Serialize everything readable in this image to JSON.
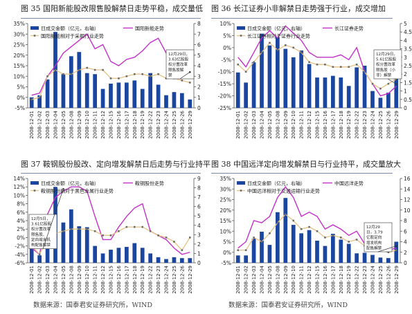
{
  "colors": {
    "bar": "#1b46a0",
    "stock": "#c230c8",
    "relative": "#e7c48b",
    "relative_marker": "#6a6a6a",
    "axis": "#555555",
    "text": "#222222"
  },
  "source_text": "数据来源：国泰君安证券研究所，WIND",
  "charts": [
    {
      "title": "图 35 国阳新能股改限售股解禁日走势平稳，成交量低",
      "legend": {
        "bar": "日成交金额（亿元，右轴）",
        "stock": "国阳新能走势",
        "relative": "国阳新能相对于采掘行业走势"
      },
      "annotation": [
        "12月29日，",
        "3.63亿股股",
        "权分置改革",
        "限售股解",
        "禁"
      ],
      "left_ticks": [
        "-5%",
        "0%",
        "5%",
        "10%",
        "15%",
        "20%",
        "25%",
        "30%",
        "35%"
      ],
      "right_ticks": [
        "0",
        "1",
        "2",
        "3",
        "4",
        "5",
        "6",
        "7",
        "8"
      ],
      "x_labels": [
        "2008-12-01",
        "2008-12-02",
        "2008-12-03",
        "2008-12-04",
        "2008-12-05",
        "2008-12-08",
        "2008-12-09",
        "2008-12-10",
        "2008-12-11",
        "2008-12-12",
        "2008-12-15",
        "2008-12-16",
        "2008-12-17",
        "2008-12-18",
        "2008-12-19",
        "2008-12-22",
        "2008-12-23",
        "2008-12-24",
        "2008-12-25",
        "2008-12-26",
        "2008-12-29"
      ]
    },
    {
      "title": "图 36 长江证券小非解禁日走势强于行业，成交增加",
      "legend": {
        "bar": "日成交金额（亿元，右轴）",
        "stock": "长江证券走势",
        "relative": "长江证券相对于证券行业走势"
      },
      "annotation": [
        "12月29日，",
        "5.61亿股股",
        "权分置改革",
        "限售股（小",
        "非）解禁"
      ],
      "left_ticks": [
        "-25%",
        "-20%",
        "-15%",
        "-10%",
        "-5%",
        "0%",
        "5%",
        "10%"
      ],
      "right_ticks": [
        "0",
        "0.5",
        "1",
        "1.5",
        "2",
        "2.5",
        "3",
        "3.5",
        "4",
        "4.5",
        "5"
      ],
      "x_labels": [
        "2008-12-01",
        "2008-12-02",
        "2008-12-03",
        "2008-12-04",
        "2008-12-05",
        "2008-12-08",
        "2008-12-09",
        "2008-12-10",
        "2008-12-11",
        "2008-12-12",
        "2008-12-15",
        "2008-12-16",
        "2008-12-17",
        "2008-12-18",
        "2008-12-19",
        "2008-12-22",
        "2008-12-23",
        "2008-12-24",
        "2008-12-25",
        "2008-12-26",
        "2008-12-29"
      ]
    },
    {
      "title": "图 37 鞍钢股份股改、定向增发解禁日后走势与行业持平",
      "legend": {
        "bar": "日成交金额（亿元，右轴）",
        "stock": "鞍钢股份走势",
        "relative": "鞍钢股份相对于黑色金属行业走势"
      },
      "annotation": [
        "12月5日，",
        "3.61亿股股",
        "权分置改革",
        "限售股、",
        "定向增发机",
        "构配售解禁"
      ],
      "left_ticks": [
        "-6%",
        "-4%",
        "-2%",
        "0%",
        "2%",
        "4%",
        "6%",
        "8%",
        "10%",
        "12%",
        "14%"
      ],
      "right_ticks": [
        "0",
        "1",
        "2",
        "3",
        "4",
        "5",
        "6",
        "7",
        "8",
        "9"
      ],
      "x_labels": [
        "2008-12-01",
        "2008-12-02",
        "2008-12-03",
        "2008-12-04",
        "2008-12-05",
        "2008-12-08",
        "2008-12-09",
        "2008-12-10",
        "2008-12-11",
        "2008-12-12",
        "2008-12-15",
        "2008-12-16",
        "2008-12-17",
        "2008-12-18",
        "2008-12-19",
        "2008-12-22",
        "2008-12-23",
        "2008-12-24",
        "2008-12-25",
        "2008-12-26",
        "2008-12-29"
      ]
    },
    {
      "title": "图 38 中国远洋定向增发解禁日与行业持平，成交量放大",
      "legend": {
        "bar": "日成交金额（亿元，右轴）",
        "stock": "中国远洋走势",
        "relative": "中国远洋相对于交通运输行业走势"
      },
      "annotation": [
        "12月29",
        "日，3.79",
        "亿股定向",
        "增发机构",
        "配售解禁"
      ],
      "left_ticks": [
        "-5%",
        "0%",
        "5%",
        "10%",
        "15%",
        "20%",
        "25%",
        "30%",
        "35%"
      ],
      "right_ticks": [
        "0",
        "2",
        "4",
        "6",
        "8",
        "10",
        "12",
        "14",
        "16"
      ],
      "x_labels": [
        "2008-12-01",
        "2008-12-02",
        "2008-12-03",
        "2008-12-04",
        "2008-12-05",
        "2008-12-08",
        "2008-12-09",
        "2008-12-10",
        "2008-12-11",
        "2008-12-12",
        "2008-12-15",
        "2008-12-16",
        "2008-12-17",
        "2008-12-18",
        "2008-12-19",
        "2008-12-22",
        "2008-12-23",
        "2008-12-24",
        "2008-12-25",
        "2008-12-26",
        "2008-12-29"
      ]
    }
  ],
  "chart_data": [
    {
      "type": "bar",
      "categories": [
        "2008-12-01",
        "2008-12-02",
        "2008-12-03",
        "2008-12-04",
        "2008-12-05",
        "2008-12-08",
        "2008-12-09",
        "2008-12-10",
        "2008-12-11",
        "2008-12-12",
        "2008-12-15",
        "2008-12-16",
        "2008-12-17",
        "2008-12-18",
        "2008-12-19",
        "2008-12-22",
        "2008-12-23",
        "2008-12-24",
        "2008-12-25",
        "2008-12-26",
        "2008-12-29"
      ],
      "ylim_left": [
        -5,
        35
      ],
      "ylim_right": [
        0,
        8
      ],
      "series": [
        {
          "name": "日成交金额（亿元，右轴）",
          "type": "bar",
          "axis": "right",
          "values": [
            1.0,
            1.2,
            2.7,
            7.2,
            3.2,
            4.9,
            5.3,
            3.3,
            3.2,
            1.8,
            2.3,
            2.4,
            2.4,
            2.6,
            1.8,
            3.3,
            2.2,
            1.2,
            1.5,
            1.4,
            0.8
          ]
        },
        {
          "name": "国阳新能走势",
          "type": "line",
          "axis": "left",
          "values": [
            1,
            2,
            10,
            15,
            21,
            24,
            27,
            30,
            23,
            25,
            17,
            15,
            18,
            19,
            22,
            26,
            28,
            21,
            17,
            18,
            11
          ]
        },
        {
          "name": "国阳新能相对于采掘行业走势",
          "type": "line",
          "axis": "left",
          "values": [
            -1,
            0,
            10,
            13,
            11,
            11,
            13,
            14,
            13,
            13,
            9,
            9,
            10,
            11,
            11,
            10,
            11,
            9,
            9,
            8,
            7
          ]
        }
      ]
    },
    {
      "type": "bar",
      "categories": [
        "2008-12-01",
        "2008-12-02",
        "2008-12-03",
        "2008-12-04",
        "2008-12-05",
        "2008-12-08",
        "2008-12-09",
        "2008-12-10",
        "2008-12-11",
        "2008-12-12",
        "2008-12-15",
        "2008-12-16",
        "2008-12-17",
        "2008-12-18",
        "2008-12-19",
        "2008-12-22",
        "2008-12-23",
        "2008-12-24",
        "2008-12-25",
        "2008-12-26",
        "2008-12-29"
      ],
      "ylim_left": [
        -25,
        10
      ],
      "ylim_right": [
        0,
        5
      ],
      "series": [
        {
          "name": "日成交金额（亿元，右轴）",
          "type": "bar",
          "axis": "right",
          "values": [
            2.1,
            1.5,
            2.7,
            4.4,
            3.7,
            4.2,
            3.5,
            3.0,
            3.4,
            2.6,
            1.8,
            1.8,
            1.9,
            1.8,
            1.3,
            2.4,
            2.5,
            1.0,
            0.6,
            0.9,
            2.0
          ]
        },
        {
          "name": "长江证券走势",
          "type": "line",
          "axis": "left",
          "values": [
            -4,
            -8,
            -2,
            4,
            7,
            4,
            9,
            6,
            3,
            -2,
            -4,
            -4,
            -4,
            -3,
            -5,
            0,
            -10,
            -15,
            -20,
            -19,
            -16
          ]
        },
        {
          "name": "长江证券相对于证券行业走势",
          "type": "line",
          "axis": "left",
          "values": [
            -7,
            -10,
            -6,
            -2,
            2,
            -1,
            1,
            0,
            -2,
            -6,
            -7,
            -7,
            -8,
            -8,
            -8,
            -7,
            -10,
            -15,
            -17,
            -15,
            -13
          ]
        }
      ]
    },
    {
      "type": "bar",
      "categories": [
        "2008-12-01",
        "2008-12-02",
        "2008-12-03",
        "2008-12-04",
        "2008-12-05",
        "2008-12-08",
        "2008-12-09",
        "2008-12-10",
        "2008-12-11",
        "2008-12-12",
        "2008-12-15",
        "2008-12-16",
        "2008-12-17",
        "2008-12-18",
        "2008-12-19",
        "2008-12-22",
        "2008-12-23",
        "2008-12-24",
        "2008-12-25",
        "2008-12-26",
        "2008-12-29"
      ],
      "ylim_left": [
        -6,
        14
      ],
      "ylim_right": [
        0,
        9
      ],
      "series": [
        {
          "name": "日成交金额（亿元，右轴）",
          "type": "bar",
          "axis": "right",
          "values": [
            1.6,
            0.8,
            2.3,
            8.1,
            4.3,
            5.7,
            3.9,
            3.8,
            1.8,
            1.0,
            1.4,
            1.6,
            1.7,
            2.1,
            1.6,
            1.0,
            0.6,
            0.4,
            0.6,
            0.5,
            0.5
          ]
        },
        {
          "name": "鞍钢股份走势",
          "type": "line",
          "axis": "left",
          "values": [
            -2.5,
            -4,
            5.5,
            9.5,
            11,
            12,
            12,
            11,
            5,
            -0.5,
            -0.5,
            2.5,
            5,
            7,
            8,
            1.5,
            0.5,
            -0.5,
            -2.5,
            -4,
            -3.5
          ]
        },
        {
          "name": "鞍钢股份相对于黑色金属行业走势",
          "type": "line",
          "axis": "left",
          "values": [
            -2,
            -4,
            0,
            1,
            1.5,
            2,
            2,
            2,
            1.5,
            0.5,
            0.5,
            1.5,
            2.5,
            2.5,
            2.5,
            1.5,
            0.5,
            0,
            -1,
            -3,
            0
          ]
        }
      ]
    },
    {
      "type": "bar",
      "categories": [
        "2008-12-01",
        "2008-12-02",
        "2008-12-03",
        "2008-12-04",
        "2008-12-05",
        "2008-12-08",
        "2008-12-09",
        "2008-12-10",
        "2008-12-11",
        "2008-12-12",
        "2008-12-15",
        "2008-12-16",
        "2008-12-17",
        "2008-12-18",
        "2008-12-19",
        "2008-12-22",
        "2008-12-23",
        "2008-12-24",
        "2008-12-25",
        "2008-12-26",
        "2008-12-29"
      ],
      "ylim_left": [
        -5,
        35
      ],
      "ylim_right": [
        0,
        16
      ],
      "series": [
        {
          "name": "日成交金额（亿元，右轴）",
          "type": "bar",
          "axis": "right",
          "values": [
            1.4,
            1.4,
            4.6,
            5.9,
            3.4,
            9.6,
            12.3,
            7.2,
            5.6,
            6.2,
            4.2,
            3.2,
            5.5,
            4.4,
            3.6,
            1.8,
            1.9,
            1.5,
            1.0,
            0.9,
            4.0
          ]
        },
        {
          "name": "中国远洋走势",
          "type": "line",
          "axis": "left",
          "values": [
            2,
            5,
            15,
            14,
            17,
            26,
            31,
            26,
            17,
            19,
            17,
            11,
            13,
            11,
            8,
            10,
            4,
            3,
            2,
            1,
            2
          ]
        },
        {
          "name": "中国远洋相对于交通运输行业走势",
          "type": "line",
          "axis": "left",
          "values": [
            1,
            1,
            7,
            5,
            9,
            14,
            18,
            15,
            11,
            12,
            10,
            7,
            8,
            7,
            5,
            6,
            3,
            2,
            1,
            0,
            1
          ]
        }
      ]
    }
  ]
}
